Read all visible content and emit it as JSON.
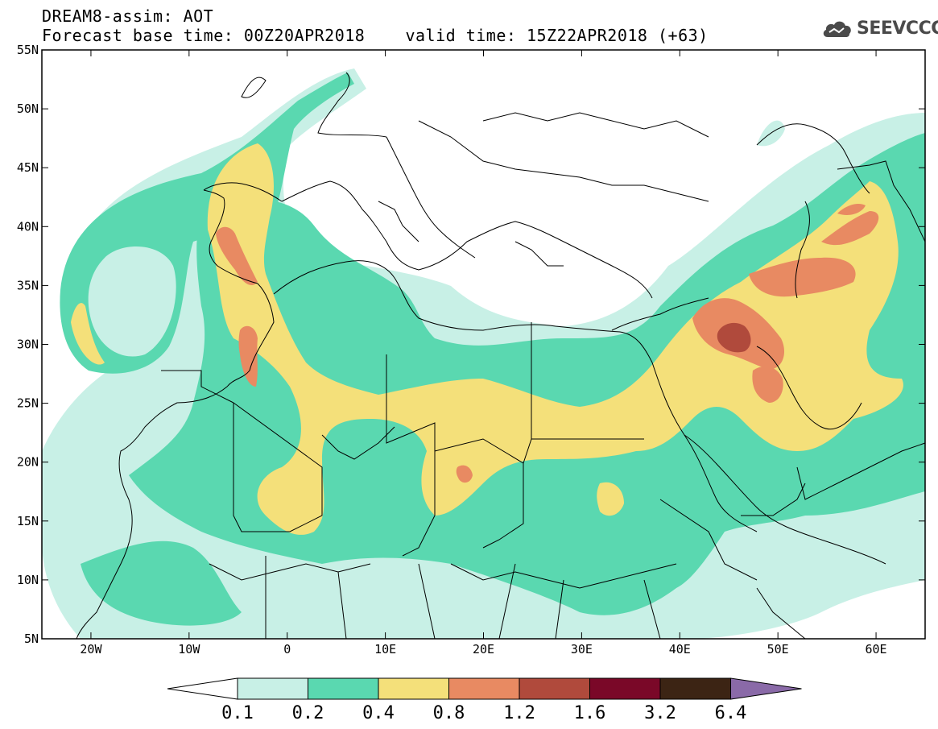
{
  "header": {
    "line1": "DREAM8-assim: AOT",
    "line2": "Forecast base time: 00Z20APR2018    valid time: 15Z22APR2018 (+63)"
  },
  "logo": {
    "text": "SEEVCCC",
    "icon": "cloud-icon",
    "color": "#4a4a4a"
  },
  "map": {
    "lon_range": [
      -25,
      65
    ],
    "lat_range": [
      5,
      55
    ],
    "lon_ticks": [
      {
        "v": -20,
        "label": "20W"
      },
      {
        "v": -10,
        "label": "10W"
      },
      {
        "v": 0,
        "label": "0"
      },
      {
        "v": 10,
        "label": "10E"
      },
      {
        "v": 20,
        "label": "20E"
      },
      {
        "v": 30,
        "label": "30E"
      },
      {
        "v": 40,
        "label": "40E"
      },
      {
        "v": 50,
        "label": "50E"
      },
      {
        "v": 60,
        "label": "60E"
      }
    ],
    "lat_ticks": [
      {
        "v": 55,
        "label": "55N"
      },
      {
        "v": 50,
        "label": "50N"
      },
      {
        "v": 45,
        "label": "45N"
      },
      {
        "v": 40,
        "label": "40N"
      },
      {
        "v": 35,
        "label": "35N"
      },
      {
        "v": 30,
        "label": "30N"
      },
      {
        "v": 25,
        "label": "25N"
      },
      {
        "v": 20,
        "label": "20N"
      },
      {
        "v": 15,
        "label": "15N"
      },
      {
        "v": 10,
        "label": "10N"
      },
      {
        "v": 5,
        "label": "5N"
      }
    ]
  },
  "colorbar": {
    "levels": [
      "0.1",
      "0.2",
      "0.4",
      "0.8",
      "1.2",
      "1.6",
      "3.2",
      "6.4"
    ],
    "colors": [
      "#c8f0e6",
      "#5ad8b0",
      "#f4e07a",
      "#e88a62",
      "#b04a3c",
      "#7a0828",
      "#3c2414"
    ],
    "low_color": "#ffffff",
    "high_color": "#8a6aa8"
  }
}
